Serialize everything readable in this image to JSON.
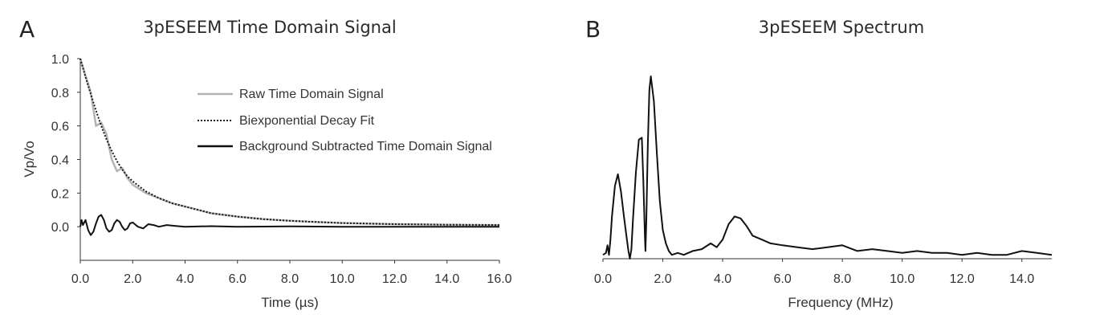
{
  "panels": {
    "a": {
      "letter": "A",
      "title": "3pESEEM Time Domain Signal"
    },
    "b": {
      "letter": "B",
      "title": "3pESEEM Spectrum"
    }
  },
  "colors": {
    "raw": "#b3b3b3",
    "fit": "#1a1a1a",
    "bgsub": "#111111",
    "spectrum": "#111111",
    "axis": "#333333"
  },
  "chart_data": [
    {
      "type": "line",
      "title": "3pESEEM Time Domain Signal",
      "xlabel": "Time (µs)",
      "ylabel": "Vp/Vo",
      "xlim": [
        0,
        16
      ],
      "ylim": [
        -0.2,
        1.0
      ],
      "x_ticks": [
        "0.0",
        "2.0",
        "4.0",
        "6.0",
        "8.0",
        "10.0",
        "12.0",
        "14.0",
        "16.0"
      ],
      "y_ticks": [
        "0.0",
        "0.2",
        "0.4",
        "0.6",
        "0.8",
        "1.0"
      ],
      "grid": false,
      "legend_position": "top-right",
      "series": [
        {
          "name": "Raw Time Domain Signal",
          "style": "solid-gray",
          "x": [
            0.0,
            0.2,
            0.4,
            0.6,
            0.8,
            1.0,
            1.2,
            1.4,
            1.6,
            1.8,
            2.0,
            2.5,
            3.0,
            3.5,
            4.0,
            5.0,
            6.0,
            7.0,
            8.0,
            9.0,
            10.0,
            12.0,
            14.0,
            16.0
          ],
          "values": [
            1.0,
            0.9,
            0.8,
            0.6,
            0.62,
            0.55,
            0.4,
            0.33,
            0.35,
            0.29,
            0.25,
            0.2,
            0.17,
            0.14,
            0.12,
            0.08,
            0.06,
            0.045,
            0.035,
            0.028,
            0.022,
            0.015,
            0.012,
            0.01
          ]
        },
        {
          "name": "Biexponential Decay Fit",
          "style": "dotted-black",
          "x": [
            0.0,
            0.2,
            0.4,
            0.6,
            0.8,
            1.0,
            1.2,
            1.4,
            1.6,
            1.8,
            2.0,
            2.5,
            3.0,
            3.5,
            4.0,
            5.0,
            6.0,
            7.0,
            8.0,
            9.0,
            10.0,
            12.0,
            14.0,
            16.0
          ],
          "values": [
            1.0,
            0.89,
            0.79,
            0.69,
            0.6,
            0.52,
            0.45,
            0.39,
            0.34,
            0.3,
            0.27,
            0.21,
            0.17,
            0.14,
            0.12,
            0.08,
            0.06,
            0.045,
            0.035,
            0.028,
            0.022,
            0.015,
            0.012,
            0.01
          ]
        },
        {
          "name": "Background Subtracted Time Domain Signal",
          "style": "solid-black",
          "x": [
            0.0,
            0.05,
            0.1,
            0.2,
            0.3,
            0.4,
            0.5,
            0.6,
            0.7,
            0.8,
            0.9,
            1.0,
            1.1,
            1.2,
            1.3,
            1.4,
            1.5,
            1.6,
            1.7,
            1.8,
            1.9,
            2.0,
            2.2,
            2.4,
            2.6,
            2.8,
            3.0,
            3.3,
            3.6,
            4.0,
            5.0,
            6.0,
            8.0,
            10.0,
            12.0,
            14.0,
            16.0
          ],
          "values": [
            0.0,
            0.04,
            0.01,
            0.04,
            -0.02,
            -0.05,
            -0.03,
            0.02,
            0.06,
            0.07,
            0.04,
            -0.01,
            -0.03,
            -0.02,
            0.02,
            0.04,
            0.03,
            0.0,
            -0.02,
            -0.01,
            0.02,
            0.025,
            0.0,
            -0.01,
            0.015,
            0.01,
            0.0,
            0.01,
            0.005,
            0.0,
            0.003,
            0.0,
            0.002,
            0.0,
            0.0,
            0.0,
            0.0
          ]
        }
      ]
    },
    {
      "type": "line",
      "title": "3pESEEM Spectrum",
      "xlabel": "Frequency (MHz)",
      "ylabel": "",
      "xlim": [
        0,
        15
      ],
      "ylim": [
        0,
        1.0
      ],
      "x_ticks": [
        "0.0",
        "2.0",
        "4.0",
        "6.0",
        "8.0",
        "10.0",
        "12.0",
        "14.0"
      ],
      "grid": false,
      "series": [
        {
          "name": "",
          "style": "solid-black",
          "x": [
            0.0,
            0.1,
            0.15,
            0.2,
            0.25,
            0.3,
            0.4,
            0.5,
            0.6,
            0.7,
            0.8,
            0.85,
            0.9,
            0.95,
            1.0,
            1.1,
            1.2,
            1.3,
            1.35,
            1.4,
            1.42,
            1.45,
            1.5,
            1.55,
            1.6,
            1.7,
            1.8,
            1.9,
            2.0,
            2.1,
            2.2,
            2.3,
            2.5,
            2.7,
            3.0,
            3.3,
            3.6,
            3.8,
            4.0,
            4.2,
            4.4,
            4.6,
            4.8,
            5.0,
            5.3,
            5.6,
            6.0,
            6.5,
            7.0,
            7.5,
            8.0,
            8.5,
            9.0,
            9.5,
            10.0,
            10.5,
            11.0,
            11.5,
            12.0,
            12.5,
            13.0,
            13.5,
            14.0,
            14.5,
            15.0
          ],
          "values": [
            0.02,
            0.03,
            0.07,
            0.02,
            0.1,
            0.22,
            0.38,
            0.44,
            0.35,
            0.22,
            0.1,
            0.04,
            0.0,
            0.05,
            0.2,
            0.45,
            0.62,
            0.63,
            0.4,
            0.12,
            0.04,
            0.2,
            0.6,
            0.88,
            0.95,
            0.82,
            0.55,
            0.3,
            0.15,
            0.08,
            0.04,
            0.02,
            0.03,
            0.02,
            0.04,
            0.05,
            0.08,
            0.06,
            0.1,
            0.18,
            0.22,
            0.21,
            0.17,
            0.12,
            0.1,
            0.08,
            0.07,
            0.06,
            0.05,
            0.06,
            0.07,
            0.04,
            0.05,
            0.04,
            0.03,
            0.04,
            0.03,
            0.03,
            0.02,
            0.03,
            0.02,
            0.02,
            0.04,
            0.03,
            0.02
          ]
        }
      ]
    }
  ]
}
